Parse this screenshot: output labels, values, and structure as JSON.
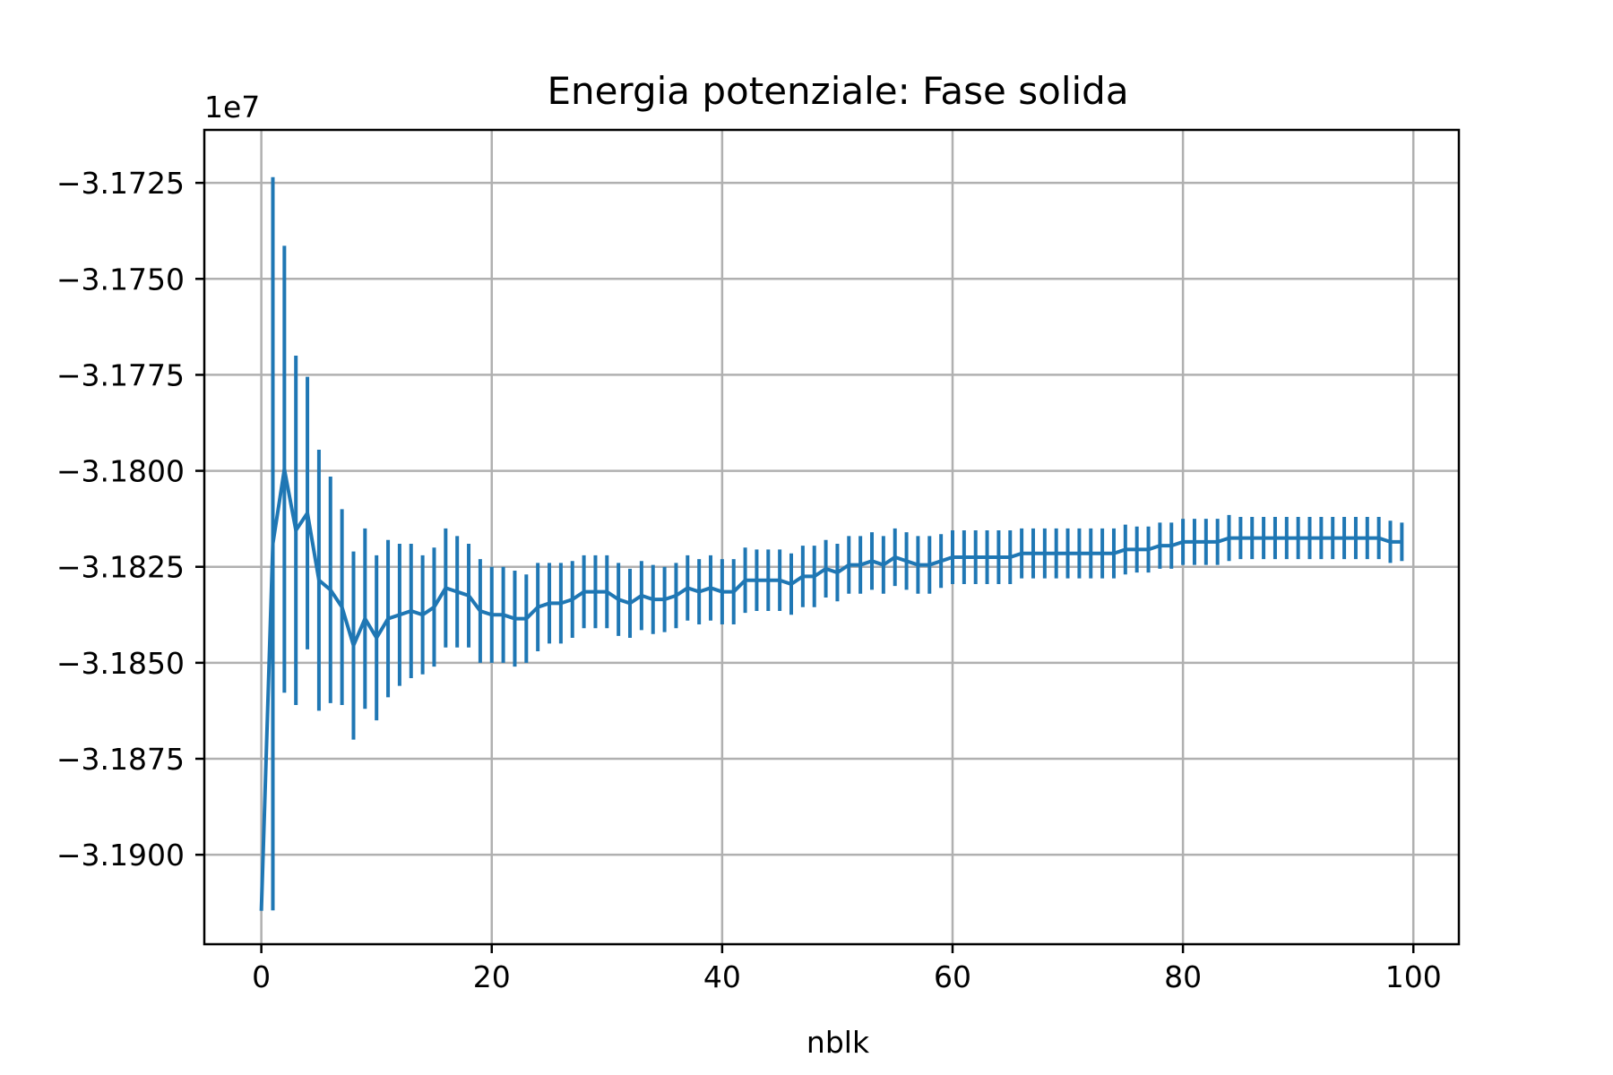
{
  "chart_data": {
    "type": "line",
    "title": "Energia potenziale: Fase solida",
    "xlabel": "nblk",
    "ylabel": "",
    "y_offset_label": "1e7",
    "xlim": [
      -4.95,
      103.95
    ],
    "ylim": [
      -31.9233,
      -31.7112
    ],
    "x_ticks": [
      0,
      20,
      40,
      60,
      80,
      100
    ],
    "x_tick_labels": [
      "0",
      "20",
      "40",
      "60",
      "80",
      "100"
    ],
    "y_ticks": [
      -31.725,
      -31.75,
      -31.775,
      -31.8,
      -31.825,
      -31.85,
      -31.875,
      -31.9
    ],
    "y_tick_labels": [
      "−3.1725",
      "−3.1750",
      "−3.1775",
      "−3.1800",
      "−3.1825",
      "−3.1850",
      "−3.1875",
      "−3.1900"
    ],
    "grid": true,
    "series_color": "#1f77b4",
    "x": [
      0,
      1,
      2,
      3,
      4,
      5,
      6,
      7,
      8,
      9,
      10,
      11,
      12,
      13,
      14,
      15,
      16,
      17,
      18,
      19,
      20,
      21,
      22,
      23,
      24,
      25,
      26,
      27,
      28,
      29,
      30,
      31,
      32,
      33,
      34,
      35,
      36,
      37,
      38,
      39,
      40,
      41,
      42,
      43,
      44,
      45,
      46,
      47,
      48,
      49,
      50,
      51,
      52,
      53,
      54,
      55,
      56,
      57,
      58,
      59,
      60,
      61,
      62,
      63,
      64,
      65,
      66,
      67,
      68,
      69,
      70,
      71,
      72,
      73,
      74,
      75,
      76,
      77,
      78,
      79,
      80,
      81,
      82,
      83,
      84,
      85,
      86,
      87,
      88,
      89,
      90,
      91,
      92,
      93,
      94,
      95,
      96,
      97,
      98,
      99
    ],
    "y": [
      -31.9146,
      -31.819,
      -31.7996,
      -31.8155,
      -31.811,
      -31.8285,
      -31.831,
      -31.8355,
      -31.8455,
      -31.8385,
      -31.8435,
      -31.8385,
      -31.8375,
      -31.8365,
      -31.8375,
      -31.8355,
      -31.8305,
      -31.8315,
      -31.8325,
      -31.8365,
      -31.8375,
      -31.8375,
      -31.8385,
      -31.8385,
      -31.8355,
      -31.8345,
      -31.8345,
      -31.8335,
      -31.8315,
      -31.8315,
      -31.8315,
      -31.8335,
      -31.8345,
      -31.8325,
      -31.8335,
      -31.8335,
      -31.8325,
      -31.8305,
      -31.8315,
      -31.8305,
      -31.8315,
      -31.8315,
      -31.8285,
      -31.8285,
      -31.8285,
      -31.8285,
      -31.8295,
      -31.8275,
      -31.8275,
      -31.8255,
      -31.8265,
      -31.8245,
      -31.8245,
      -31.8235,
      -31.8245,
      -31.8225,
      -31.8235,
      -31.8245,
      -31.8245,
      -31.8235,
      -31.8225,
      -31.8225,
      -31.8225,
      -31.8225,
      -31.8225,
      -31.8225,
      -31.8215,
      -31.8215,
      -31.8215,
      -31.8215,
      -31.8215,
      -31.8215,
      -31.8215,
      -31.8215,
      -31.8215,
      -31.8205,
      -31.8205,
      -31.8205,
      -31.8195,
      -31.8195,
      -31.8185,
      -31.8185,
      -31.8185,
      -31.8185,
      -31.8175,
      -31.8175,
      -31.8175,
      -31.8175,
      -31.8175,
      -31.8175,
      -31.8175,
      -31.8175,
      -31.8175,
      -31.8175,
      -31.8175,
      -31.8175,
      -31.8175,
      -31.8175,
      -31.8185,
      -31.8185
    ],
    "yerr": [
      0,
      0.0955,
      0.0582,
      0.0455,
      0.0355,
      0.034,
      0.0295,
      0.0255,
      0.0245,
      0.0235,
      0.0215,
      0.0205,
      0.0185,
      0.0175,
      0.0155,
      0.0155,
      0.0155,
      0.0145,
      0.0135,
      0.0135,
      0.0125,
      0.0125,
      0.0125,
      0.0115,
      0.0115,
      0.0105,
      0.0105,
      0.01,
      0.0095,
      0.0095,
      0.0095,
      0.0095,
      0.009,
      0.009,
      0.009,
      0.0085,
      0.0085,
      0.0085,
      0.0085,
      0.0085,
      0.0085,
      0.0085,
      0.0085,
      0.008,
      0.008,
      0.008,
      0.008,
      0.008,
      0.008,
      0.0075,
      0.0075,
      0.0075,
      0.0075,
      0.0075,
      0.0075,
      0.0075,
      0.0075,
      0.0075,
      0.0075,
      0.007,
      0.007,
      0.007,
      0.007,
      0.007,
      0.007,
      0.007,
      0.0065,
      0.0065,
      0.0065,
      0.0065,
      0.0065,
      0.0065,
      0.0065,
      0.0065,
      0.0065,
      0.0065,
      0.006,
      0.006,
      0.006,
      0.006,
      0.006,
      0.006,
      0.006,
      0.006,
      0.006,
      0.0055,
      0.0055,
      0.0055,
      0.0055,
      0.0055,
      0.0055,
      0.0055,
      0.0055,
      0.0055,
      0.0055,
      0.0055,
      0.0055,
      0.0055,
      0.0055,
      0.005
    ]
  }
}
